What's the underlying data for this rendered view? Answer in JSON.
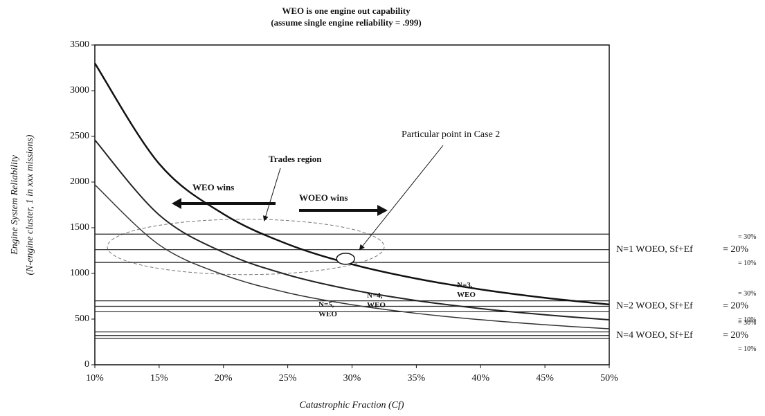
{
  "chart_data": {
    "type": "line",
    "title": [
      "WEO is one engine out capability",
      "(assume single engine reliability = .999)"
    ],
    "y_label": [
      "Engine System Reliability",
      "(N-engine cluster, 1 in xxx missions)"
    ],
    "x_label": "Catastrophic Fraction (Cf)",
    "x": [
      10,
      15,
      20,
      25,
      30,
      35,
      40,
      45,
      50
    ],
    "series": [
      {
        "name": "N=3, WEO",
        "color": "#111111",
        "width": 2.5,
        "values": [
          3300,
          2200,
          1650,
          1320,
          1100,
          943,
          825,
          733,
          660
        ]
      },
      {
        "name": "N=4, WEO",
        "color": "#222222",
        "width": 2,
        "values": [
          2460,
          1640,
          1230,
          984,
          820,
          703,
          615,
          547,
          492
        ]
      },
      {
        "name": "N=5, WEO",
        "color": "#333333",
        "width": 1.5,
        "values": [
          1970,
          1313,
          985,
          788,
          657,
          563,
          493,
          438,
          394
        ]
      }
    ],
    "reference_groups": [
      {
        "name": "N=1 WOEO, Sf+Ef",
        "levels": [
          {
            "label": "= 30%",
            "value": 1430
          },
          {
            "label": "= 20%",
            "value": 1260
          },
          {
            "label": "= 10%",
            "value": 1120
          }
        ]
      },
      {
        "name": "N=2 WOEO, Sf+Ef",
        "levels": [
          {
            "label": "= 30%",
            "value": 700
          },
          {
            "label": "= 20%",
            "value": 640
          },
          {
            "label": "= 10%",
            "value": 580
          }
        ]
      },
      {
        "name": "N=4 WOEO, Sf+Ef",
        "levels": [
          {
            "label": "= 30%",
            "value": 360
          },
          {
            "label": "= 20%",
            "value": 320
          },
          {
            "label": "= 10%",
            "value": 290
          }
        ]
      }
    ],
    "annotations": [
      "Trades region",
      "WEO wins",
      "WOEO wins",
      "Particular point in Case 2"
    ],
    "xlim": [
      10,
      50
    ],
    "xticks": [
      {
        "value": 10,
        "label": "10%"
      },
      {
        "value": 15,
        "label": "15%"
      },
      {
        "value": 20,
        "label": "20%"
      },
      {
        "value": 25,
        "label": "25%"
      },
      {
        "value": 30,
        "label": "30%"
      },
      {
        "value": 35,
        "label": "35%"
      },
      {
        "value": 40,
        "label": "40%"
      },
      {
        "value": 45,
        "label": "45%"
      },
      {
        "value": 50,
        "label": "50%"
      }
    ],
    "ylim": [
      0,
      3500
    ],
    "yticks": [
      0,
      500,
      1000,
      1500,
      2000,
      2500,
      3000,
      3500
    ],
    "grid": false
  }
}
